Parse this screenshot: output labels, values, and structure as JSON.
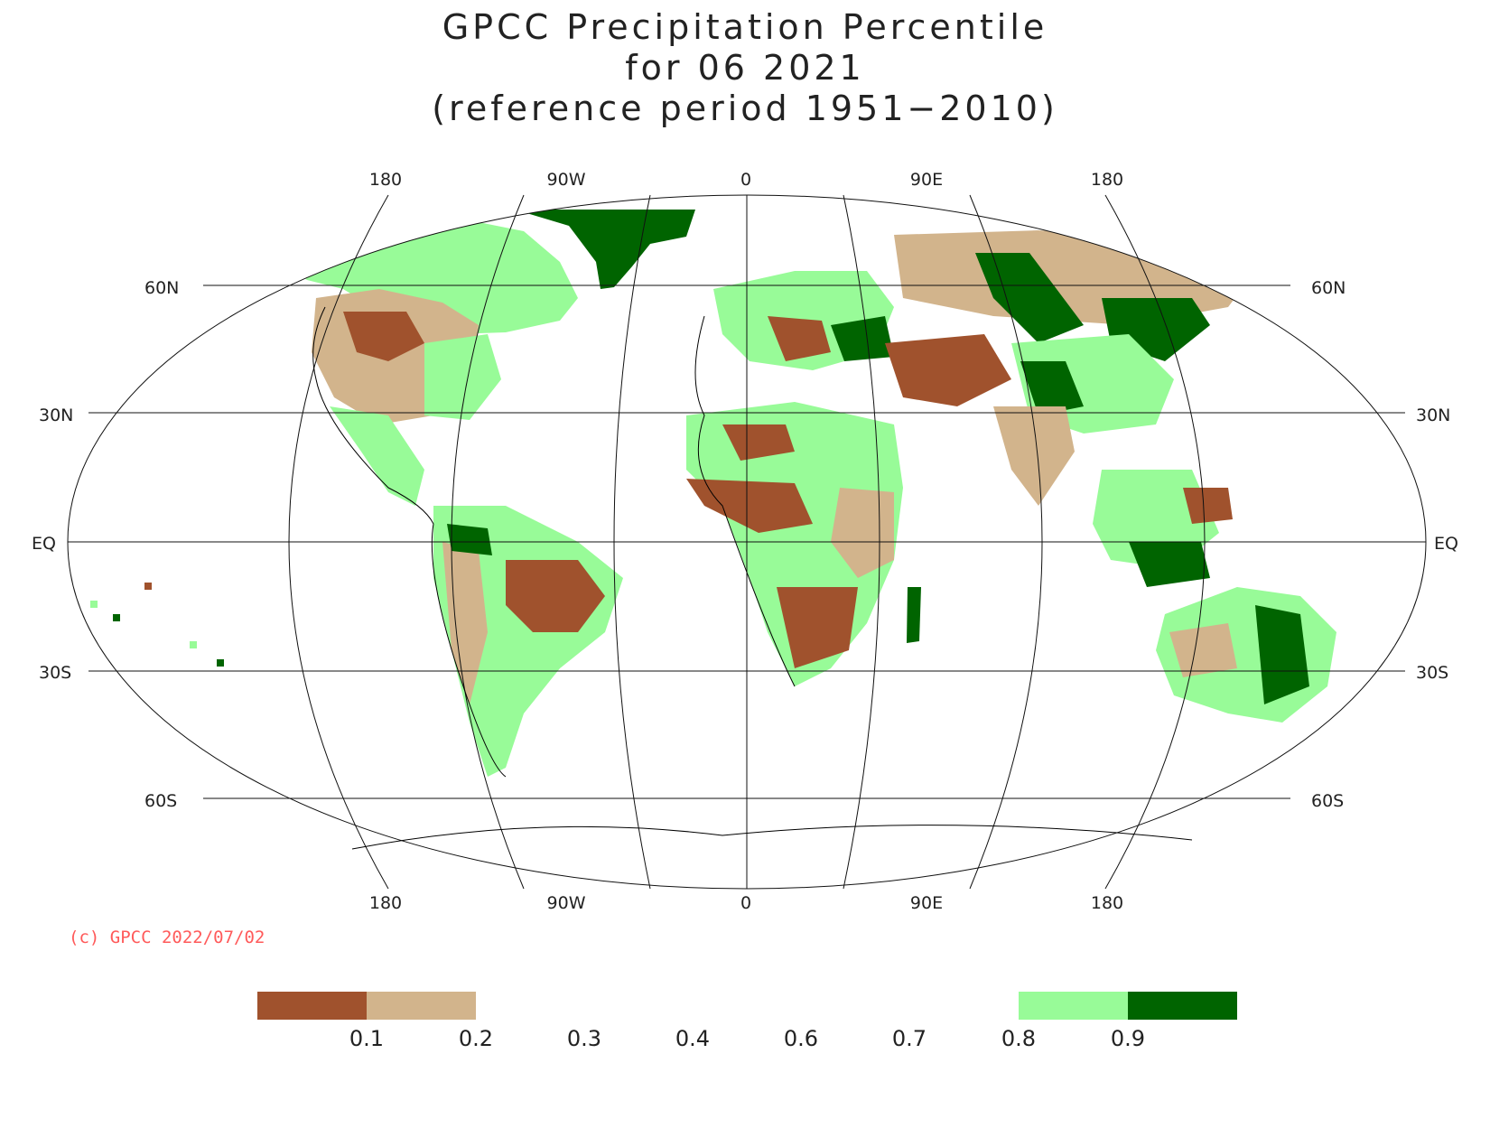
{
  "title": {
    "line1": "GPCC Precipitation Percentile",
    "line2": "for 06 2021",
    "line3": "(reference period 1951−2010)"
  },
  "map": {
    "projection": "Robinson",
    "lon_labels_top": [
      "180",
      "90W",
      "0",
      "90E",
      "180"
    ],
    "lon_labels_bottom": [
      "180",
      "90W",
      "0",
      "90E",
      "180"
    ],
    "lat_labels_left": [
      "60N",
      "30N",
      "EQ",
      "30S",
      "60S"
    ],
    "lat_labels_right": [
      "60N",
      "30N",
      "EQ",
      "30S",
      "60S"
    ],
    "copyright": "(c) GPCC 2022/07/02",
    "copyright_color": "#ff5a5a"
  },
  "legend": {
    "tick_labels": [
      "0.1",
      "0.2",
      "0.3",
      "0.4",
      "0.6",
      "0.7",
      "0.8",
      "0.9"
    ],
    "bins": [
      {
        "range": "<0.1",
        "color": "#a0522d"
      },
      {
        "range": "0.1–0.2",
        "color": "#d2b48c"
      },
      {
        "range": "0.2–0.8",
        "color": "#ffffff"
      },
      {
        "range": "0.8–0.9",
        "color": "#98fb98"
      },
      {
        "range": ">0.9",
        "color": "#006400"
      }
    ]
  }
}
